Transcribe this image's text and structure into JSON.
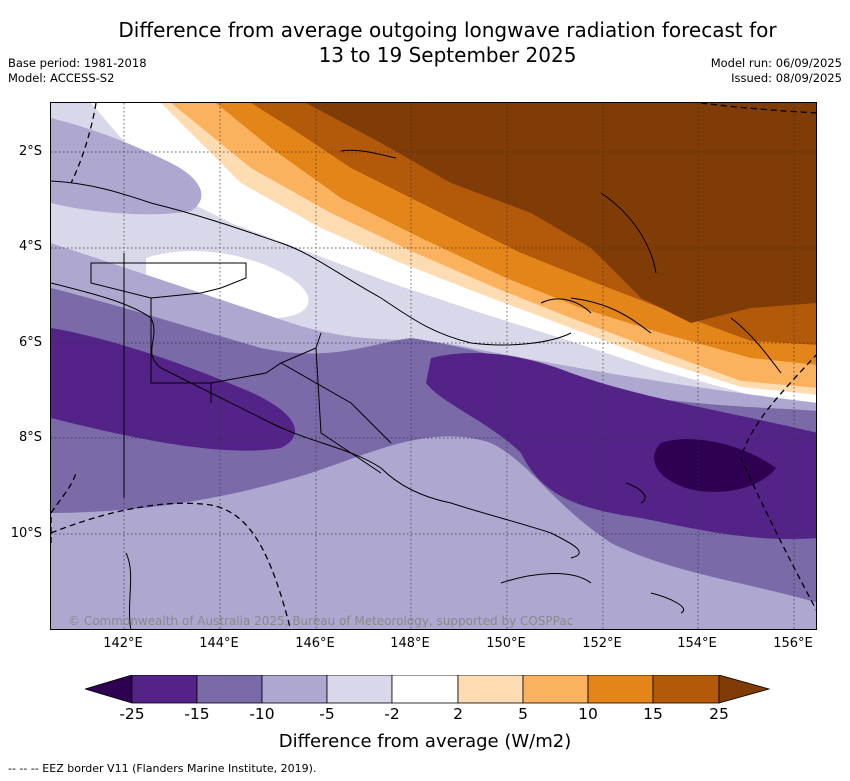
{
  "title_line1": "Difference from average outgoing longwave radiation forecast for",
  "title_line2": "13 to 19 September 2025",
  "base_period": "Base period: 1981-2018",
  "model": "Model: ACCESS-S2",
  "model_run": "Model run: 06/09/2025",
  "issued": "Issued: 08/09/2025",
  "lat_labels": [
    "2°S",
    "4°S",
    "6°S",
    "8°S",
    "10°S"
  ],
  "lon_labels": [
    "142°E",
    "144°E",
    "146°E",
    "148°E",
    "150°E",
    "152°E",
    "154°E",
    "156°E"
  ],
  "copyright": "© Commonwealth of Australia 2025, Bureau of Meteorology, supported by COSPPac",
  "colorbar": {
    "title": "Difference from average (W/m2)",
    "ticks": [
      "-25",
      "-15",
      "-10",
      "-5",
      "-2",
      "2",
      "5",
      "10",
      "15",
      "25"
    ],
    "colors": {
      "below_min": "#2d0052",
      "neg_25_15": "#532388",
      "neg_15_10": "#7a6aa8",
      "neg_10_5": "#aea7d0",
      "neg_5_2": "#d9d8ea",
      "neutral": "#ffffff",
      "pos_2_5": "#fedcb2",
      "pos_5_10": "#fbb25e",
      "pos_10_15": "#e38519",
      "pos_15_25": "#b35a0a",
      "above_max": "#7f3c06"
    }
  },
  "footnote": "-- -- -- EEZ border V11 (Flanders Marine Institute, 2019)."
}
